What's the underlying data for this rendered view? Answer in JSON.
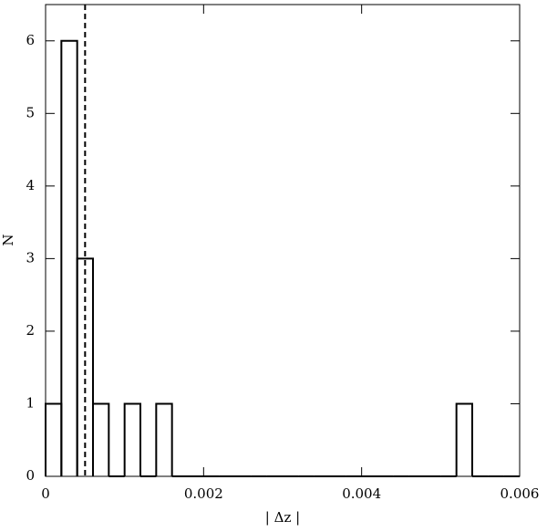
{
  "chart_data": {
    "type": "histogram",
    "xlabel": "| Δz |",
    "ylabel": "N",
    "bins": [
      0,
      0.0002,
      0.0004,
      0.0006,
      0.0008,
      0.001,
      0.0012,
      0.0014,
      0.0016,
      0.0018,
      0.002,
      0.0022,
      0.0024,
      0.0026,
      0.0028,
      0.003,
      0.0032,
      0.0034,
      0.0036,
      0.0038,
      0.004,
      0.0042,
      0.0044,
      0.0046,
      0.0048,
      0.005,
      0.0052,
      0.0054,
      0.0056,
      0.0058,
      0.006
    ],
    "values": [
      1,
      6,
      3,
      1,
      0,
      1,
      0,
      1,
      0,
      0,
      0,
      0,
      0,
      0,
      0,
      0,
      0,
      0,
      0,
      0,
      0,
      0,
      0,
      0,
      0,
      0,
      1,
      0,
      0,
      0
    ],
    "color": "#000000",
    "xlim": [
      0,
      0.006
    ],
    "xticks": [
      0,
      0.002,
      0.004,
      0.006
    ],
    "ylim": [
      0,
      6.5
    ],
    "yticks": [
      0,
      1,
      2,
      3,
      4,
      5,
      6
    ],
    "vline_x": 0.0005,
    "vline_dashed": true
  }
}
